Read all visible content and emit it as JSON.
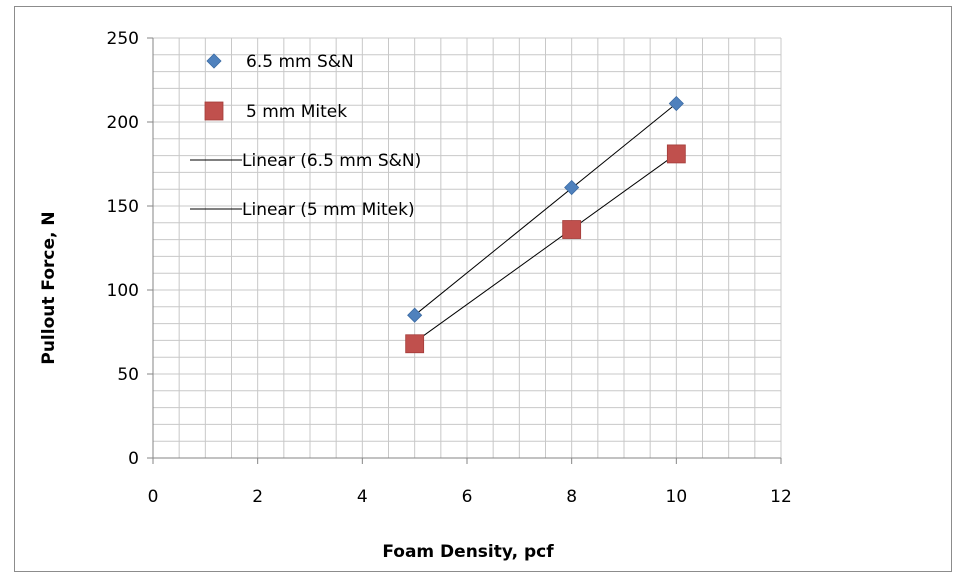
{
  "chart_data": {
    "type": "scatter",
    "title": "",
    "xlabel": "Foam Density, pcf",
    "ylabel": "Pullout Force, N",
    "xlim": [
      0,
      12
    ],
    "ylim": [
      0,
      250
    ],
    "xticks": [
      0,
      2,
      4,
      6,
      8,
      10,
      12
    ],
    "yticks": [
      0,
      50,
      100,
      150,
      200,
      250
    ],
    "grid": true,
    "legend_position": "top-left",
    "series": [
      {
        "name": "6.5 mm S&N",
        "marker": "diamond",
        "color": "#4f81bd",
        "x": [
          5,
          8,
          10
        ],
        "y": [
          85,
          161,
          211
        ]
      },
      {
        "name": "5 mm Mitek",
        "marker": "square",
        "color": "#c0504d",
        "x": [
          5,
          8,
          10
        ],
        "y": [
          68,
          136,
          181
        ]
      }
    ],
    "trendlines": [
      {
        "name": "Linear (6.5 mm S&N)",
        "type": "linear",
        "color": "#000000",
        "x": [
          5,
          10
        ],
        "y": [
          85,
          211
        ]
      },
      {
        "name": "Linear (5 mm Mitek)",
        "type": "linear",
        "color": "#000000",
        "x": [
          5,
          10
        ],
        "y": [
          69,
          181
        ]
      }
    ]
  }
}
